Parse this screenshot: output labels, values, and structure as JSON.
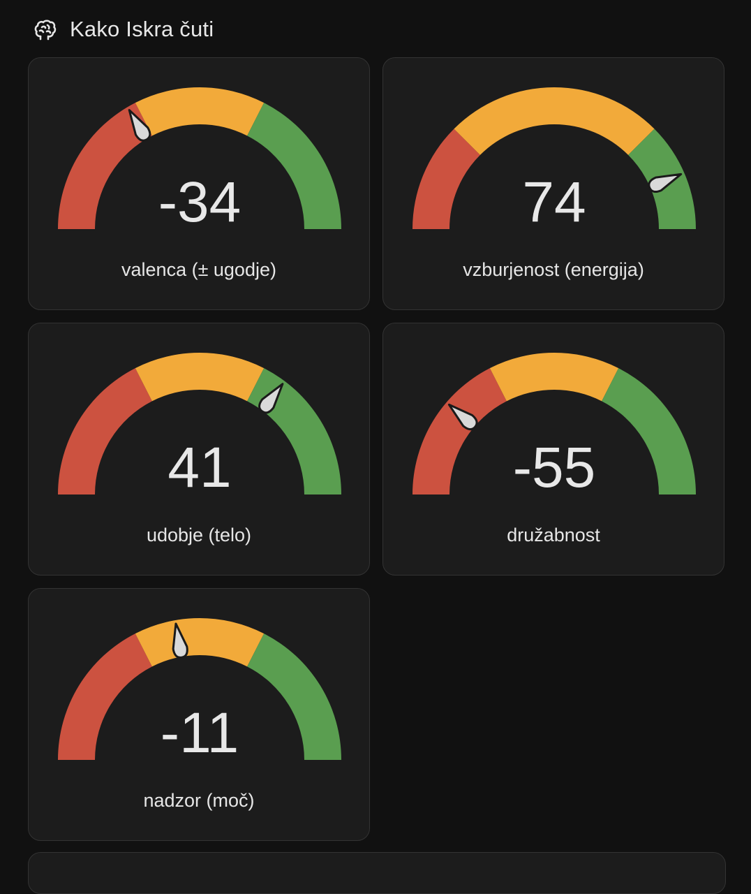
{
  "header": {
    "title": "Kako Iskra čuti",
    "icon": "brain-icon"
  },
  "gauge_scale": {
    "min": -100,
    "max": 100
  },
  "colors": {
    "red": "#cc5240",
    "yellow": "#f2aa3a",
    "green": "#5a9e50",
    "needle": "#d9d9d9",
    "value_text": "#e8e8e8"
  },
  "gauges": [
    {
      "value": -34,
      "display": "-34",
      "label": "valenca (± ugodje)",
      "segments": [
        -100,
        -30,
        30,
        100
      ]
    },
    {
      "value": 74,
      "display": "74",
      "label": "vzburjenost (energija)",
      "segments": [
        -100,
        -50,
        50,
        100
      ]
    },
    {
      "value": 41,
      "display": "41",
      "label": "udobje (telo)",
      "segments": [
        -100,
        -30,
        30,
        100
      ]
    },
    {
      "value": -55,
      "display": "-55",
      "label": "družabnost",
      "segments": [
        -100,
        -30,
        30,
        100
      ]
    },
    {
      "value": -11,
      "display": "-11",
      "label": "nadzor (moč)",
      "segments": [
        -100,
        -30,
        30,
        100
      ]
    }
  ]
}
